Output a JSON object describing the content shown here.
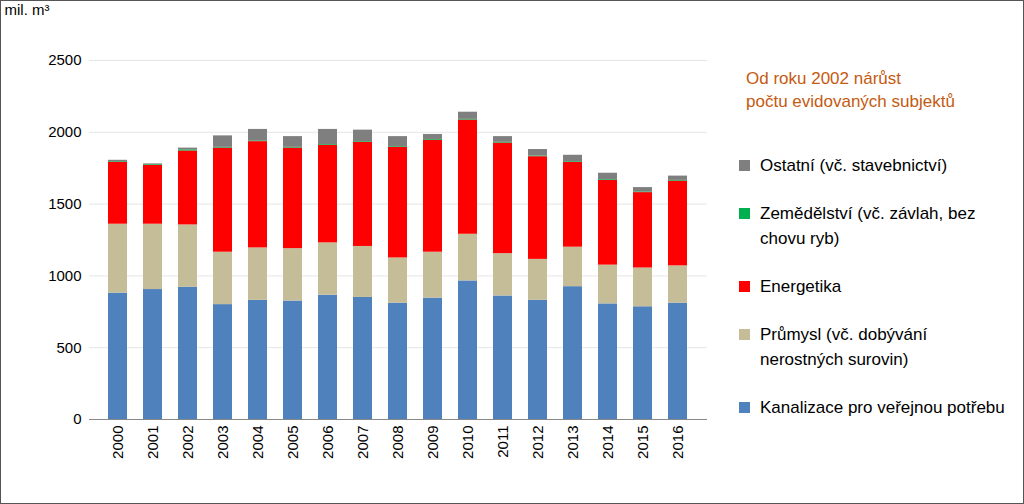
{
  "chart_data": {
    "type": "bar",
    "stacked": true,
    "annotation": "Od roku 2002 nárůst\n počtu evidovaných subjektů",
    "y_label": "mil. m³",
    "categories": [
      "2000",
      "2001",
      "2002",
      "2003",
      "2004",
      "2005",
      "2006",
      "2007",
      "2008",
      "2009",
      "2010",
      "2011",
      "2012",
      "2013",
      "2014",
      "2015",
      "2016"
    ],
    "series": [
      {
        "name": "Kanalizace pro veřejnou potřebu",
        "color": "#4f81bd",
        "values": [
          880,
          905,
          920,
          800,
          830,
          825,
          865,
          850,
          810,
          845,
          965,
          860,
          830,
          925,
          805,
          785,
          810
        ]
      },
      {
        "name": "Průmysl (vč. dobývání nerostných surovin)",
        "color": "#c4bd97",
        "values": [
          480,
          455,
          435,
          365,
          365,
          365,
          365,
          355,
          315,
          320,
          325,
          295,
          285,
          275,
          270,
          270,
          260
        ]
      },
      {
        "name": "Energetika",
        "color": "#ff0000",
        "values": [
          430,
          410,
          515,
          725,
          740,
          700,
          680,
          725,
          770,
          780,
          795,
          770,
          715,
          590,
          590,
          525,
          590
        ]
      },
      {
        "name": "Zemědělství (vč. závlah, bez chovu ryb)",
        "color": "#00b050",
        "values": [
          5,
          5,
          8,
          5,
          5,
          5,
          5,
          5,
          5,
          5,
          5,
          5,
          5,
          5,
          5,
          5,
          5
        ]
      },
      {
        "name": "Ostatní (vč. stavebnictví)",
        "color": "#7f7f7f",
        "values": [
          10,
          5,
          12,
          80,
          80,
          75,
          105,
          80,
          70,
          35,
          50,
          40,
          45,
          45,
          45,
          30,
          30
        ]
      }
    ],
    "ylim": [
      0,
      2500
    ],
    "yticks": [
      0,
      500,
      1000,
      1500,
      2000,
      2500
    ],
    "grid": true,
    "legend": "right"
  }
}
